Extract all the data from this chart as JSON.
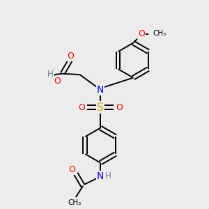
{
  "background_color": "#ececec",
  "atom_colors": {
    "C": "#000000",
    "H": "#708090",
    "N": "#0000ff",
    "O": "#ff0000",
    "S": "#ccaa00"
  },
  "figsize": [
    3.0,
    3.0
  ],
  "dpi": 100
}
